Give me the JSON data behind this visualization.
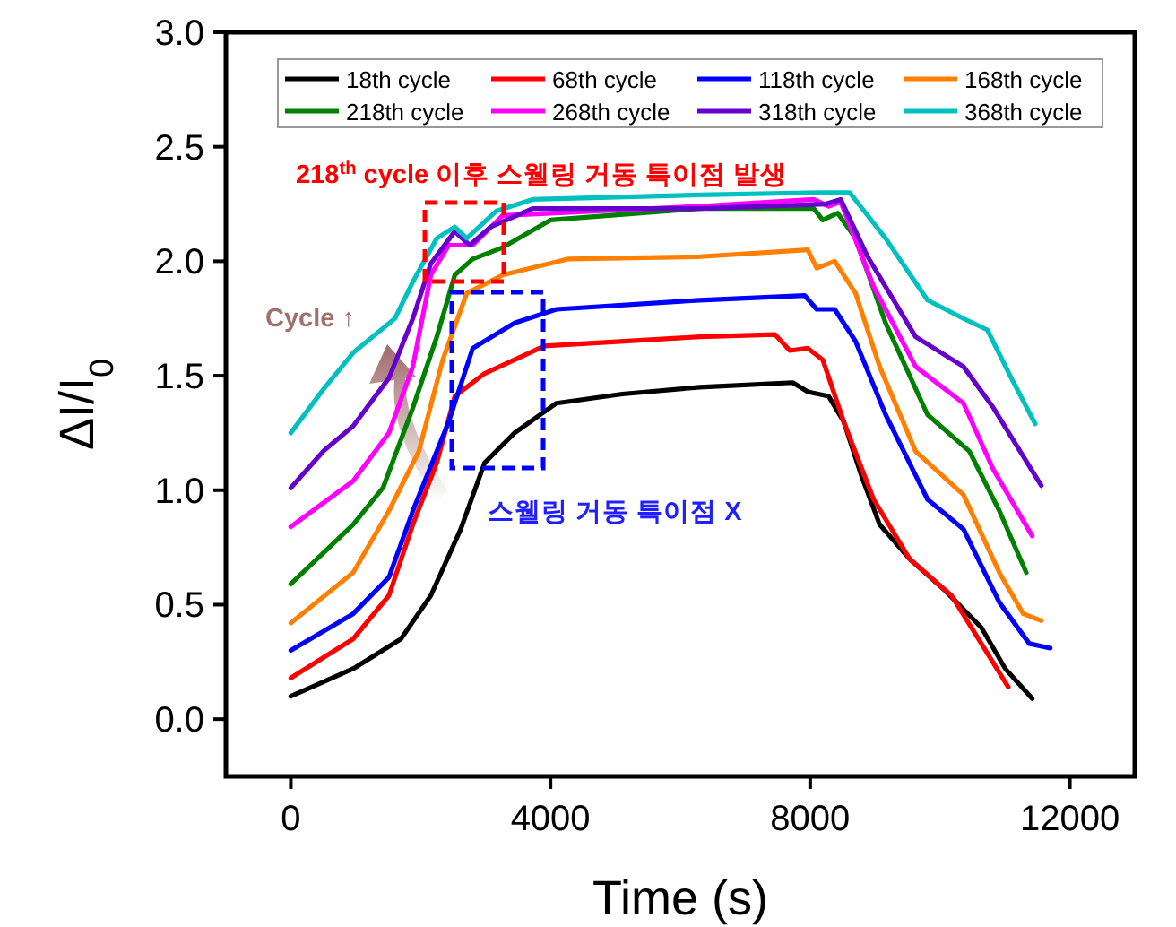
{
  "chart_data": {
    "type": "line",
    "xlabel": "Time (s)",
    "ylabel": "ΔI/I$_{0}$",
    "xlim": [
      -1000,
      13000
    ],
    "xticks": [
      0,
      4000,
      8000,
      12000
    ],
    "ylim": [
      -0.25,
      3.0
    ],
    "yticks": [
      {
        "value": 0,
        "label": "0.0"
      },
      0.5,
      {
        "value": 1,
        "label": "1.0"
      },
      1.5,
      {
        "value": 2,
        "label": "2.0"
      },
      2.5,
      {
        "value": 3,
        "label": "3.0"
      }
    ],
    "legend": "top",
    "grid": false,
    "marker": "none",
    "line_style": "solid",
    "annotations": [
      "218$^{th}$ cycle 이후 스웰링 거동 특이점 발생",
      "Cycle ↑",
      "스웰링 거동 특이점 X"
    ],
    "series": [
      {
        "name": "18th cycle",
        "color": "#000000",
        "x": [
          0,
          960,
          1696,
          2157,
          2618,
          2986,
          3447,
          4092,
          5106,
          6300,
          7733,
          7963,
          8286,
          8516,
          8793,
          9070,
          9531,
          10084,
          10637,
          11006,
          11421
        ],
        "values": [
          0.1,
          0.22,
          0.35,
          0.54,
          0.83,
          1.12,
          1.25,
          1.38,
          1.42,
          1.45,
          1.47,
          1.43,
          1.41,
          1.3,
          1.06,
          0.85,
          0.7,
          0.56,
          0.4,
          0.22,
          0.09
        ]
      },
      {
        "name": "68th cycle",
        "color": "#ff0000",
        "x": [
          0,
          960,
          1512,
          1880,
          2249,
          2526,
          2986,
          3907,
          6300,
          7457,
          7687,
          7963,
          8193,
          8516,
          8977,
          9531,
          10176,
          10637,
          11052
        ],
        "values": [
          0.18,
          0.35,
          0.54,
          0.85,
          1.12,
          1.41,
          1.51,
          1.63,
          1.67,
          1.68,
          1.61,
          1.62,
          1.57,
          1.3,
          0.96,
          0.7,
          0.54,
          0.33,
          0.14
        ]
      },
      {
        "name": "118th cycle",
        "color": "#0000ff",
        "x": [
          0,
          960,
          1512,
          1880,
          2433,
          2802,
          3447,
          4092,
          6300,
          7917,
          8101,
          8378,
          8700,
          9162,
          9808,
          10361,
          10914,
          11375,
          11698
        ],
        "values": [
          0.3,
          0.46,
          0.62,
          0.91,
          1.3,
          1.62,
          1.73,
          1.79,
          1.83,
          1.85,
          1.79,
          1.79,
          1.65,
          1.33,
          0.96,
          0.83,
          0.51,
          0.33,
          0.31
        ]
      },
      {
        "name": "168th cycle",
        "color": "#ff8000",
        "x": [
          0,
          960,
          1512,
          1972,
          2341,
          2710,
          3263,
          4277,
          6300,
          7963,
          8101,
          8378,
          8700,
          9070,
          9624,
          10361,
          10914,
          11283,
          11560
        ],
        "values": [
          0.42,
          0.64,
          0.91,
          1.17,
          1.57,
          1.86,
          1.94,
          2.01,
          2.02,
          2.05,
          1.97,
          2.0,
          1.86,
          1.54,
          1.17,
          0.98,
          0.64,
          0.46,
          0.43
        ]
      },
      {
        "name": "218th cycle",
        "color": "#008000",
        "x": [
          0,
          960,
          1420,
          1880,
          2249,
          2526,
          2802,
          3263,
          4000,
          6300,
          8055,
          8193,
          8424,
          8700,
          9162,
          9808,
          10453,
          10914,
          11329
        ],
        "values": [
          0.59,
          0.85,
          1.01,
          1.36,
          1.67,
          1.94,
          2.01,
          2.06,
          2.18,
          2.23,
          2.23,
          2.18,
          2.21,
          2.1,
          1.73,
          1.33,
          1.17,
          0.91,
          0.64
        ]
      },
      {
        "name": "268th cycle",
        "color": "#ff00ff",
        "x": [
          0,
          960,
          1512,
          1880,
          2157,
          2433,
          2802,
          3263,
          6300,
          8055,
          8286,
          8470,
          8977,
          9624,
          10361,
          10822,
          11421
        ],
        "values": [
          0.84,
          1.04,
          1.25,
          1.54,
          1.94,
          2.07,
          2.07,
          2.2,
          2.24,
          2.27,
          2.24,
          2.26,
          1.89,
          1.54,
          1.38,
          1.09,
          0.8
        ]
      },
      {
        "name": "318th cycle",
        "color": "#6600cc",
        "x": [
          0,
          500,
          960,
          1512,
          1880,
          2157,
          2526,
          2756,
          3078,
          3724,
          6300,
          8240,
          8470,
          8885,
          9624,
          10361,
          10822,
          11560
        ],
        "values": [
          1.01,
          1.17,
          1.28,
          1.49,
          1.75,
          1.99,
          2.13,
          2.07,
          2.15,
          2.23,
          2.23,
          2.25,
          2.27,
          2.02,
          1.67,
          1.54,
          1.36,
          1.02
        ]
      },
      {
        "name": "368th cycle",
        "color": "#00c0c0",
        "x": [
          0,
          500,
          960,
          1604,
          1880,
          2249,
          2526,
          2710,
          3170,
          3724,
          6300,
          8147,
          8608,
          9162,
          9808,
          10361,
          10730,
          11098,
          11467
        ],
        "values": [
          1.25,
          1.44,
          1.6,
          1.75,
          1.91,
          2.1,
          2.15,
          2.1,
          2.22,
          2.27,
          2.29,
          2.3,
          2.3,
          2.1,
          1.83,
          1.75,
          1.7,
          1.49,
          1.29
        ]
      }
    ]
  }
}
